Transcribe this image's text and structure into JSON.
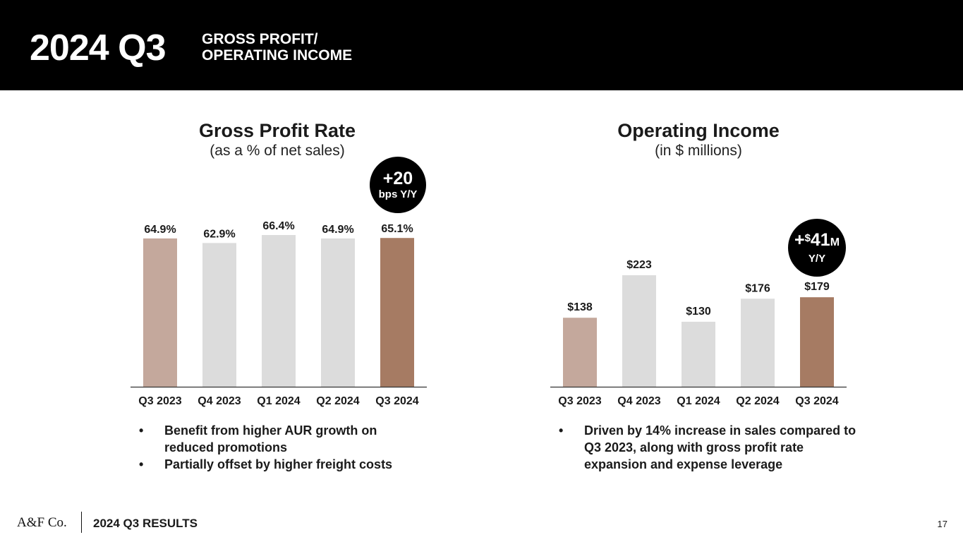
{
  "header": {
    "title": "2024 Q3",
    "subtitle_line1": "GROSS PROFIT/",
    "subtitle_line2": "OPERATING INCOME"
  },
  "colors": {
    "header_bg": "#000000",
    "highlight_prior": "#c4a89c",
    "neutral": "#dcdcdc",
    "highlight_current": "#a67b63",
    "axis": "#333333"
  },
  "gross_profit": {
    "title": "Gross Profit Rate",
    "subtitle": "(as a % of net sales)",
    "badge_value": "+20",
    "badge_label": "bps Y/Y",
    "bullets": [
      "Benefit from higher AUR growth on reduced promotions",
      "Partially offset by higher freight costs"
    ]
  },
  "operating_income": {
    "title": "Operating Income",
    "subtitle": "(in $ millions)",
    "badge_plus": "+",
    "badge_currency": "$",
    "badge_value": "41",
    "badge_unit": "M",
    "badge_label": "Y/Y",
    "bullets": [
      "Driven by 14% increase in sales compared to Q3 2023, along with gross profit rate expansion and expense leverage"
    ]
  },
  "chart_data": [
    {
      "type": "bar",
      "title": "Gross Profit Rate",
      "subtitle": "(as a % of net sales)",
      "categories": [
        "Q3 2023",
        "Q4 2023",
        "Q1 2024",
        "Q2 2024",
        "Q3 2024"
      ],
      "values": [
        64.9,
        62.9,
        66.4,
        64.9,
        65.1
      ],
      "labels": [
        "64.9%",
        "62.9%",
        "66.4%",
        "64.9%",
        "65.1%"
      ],
      "bar_colors": [
        "#c4a89c",
        "#dcdcdc",
        "#dcdcdc",
        "#dcdcdc",
        "#a67b63"
      ],
      "ylim": [
        0,
        70
      ],
      "xlabel": "",
      "ylabel": ""
    },
    {
      "type": "bar",
      "title": "Operating Income",
      "subtitle": "(in $ millions)",
      "categories": [
        "Q3 2023",
        "Q4 2023",
        "Q1 2024",
        "Q2 2024",
        "Q3 2024"
      ],
      "values": [
        138,
        223,
        130,
        176,
        179
      ],
      "labels": [
        "$138",
        "$223",
        "$130",
        "$176",
        "$179"
      ],
      "bar_colors": [
        "#c4a89c",
        "#dcdcdc",
        "#dcdcdc",
        "#dcdcdc",
        "#a67b63"
      ],
      "ylim": [
        0,
        280
      ],
      "xlabel": "",
      "ylabel": ""
    }
  ],
  "footer": {
    "logo": "A&F Co.",
    "text": "2024 Q3 RESULTS",
    "page_number": "17"
  }
}
